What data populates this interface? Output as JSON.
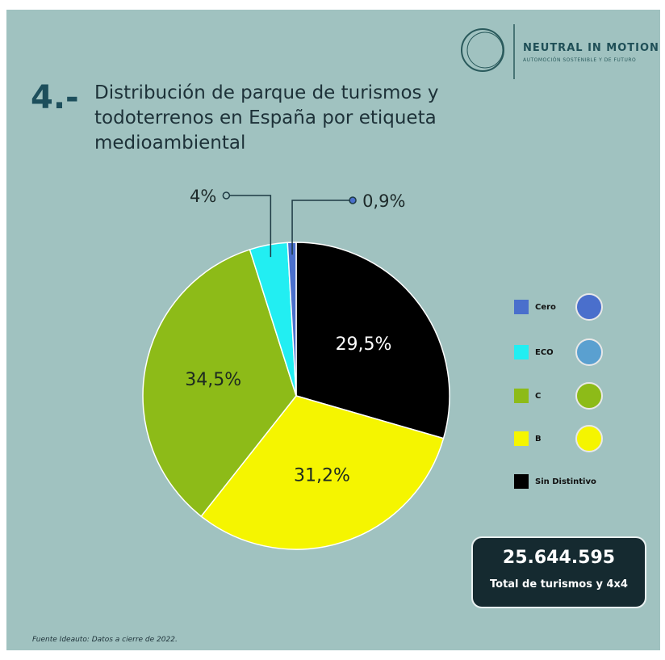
{
  "chart_data": {
    "type": "pie",
    "number": "4.-",
    "title": "Distribución de parque de turismos y todoterrenos en España por etiqueta medioambiental",
    "categories": [
      "Cero",
      "ECO",
      "C",
      "B",
      "Sin Distintivo"
    ],
    "values": [
      0.9,
      4,
      34.5,
      31.2,
      29.5
    ],
    "value_labels": [
      "0,9%",
      "4%",
      "34,5%",
      "31,2%",
      "29,5%"
    ],
    "colors": [
      "#4a6fcc",
      "#22eef2",
      "#8dbb18",
      "#f5f500",
      "#000000"
    ],
    "legend": "right",
    "total": "25.644.595",
    "total_label": "Total de turismos y 4x4",
    "source": "Fuente Ideauto: Datos a cierre de 2022."
  },
  "logo": {
    "name": "NEUTRAL IN MOTION",
    "tagline": "AUTOMOCIÓN SOSTENIBLE Y DE FUTURO"
  }
}
